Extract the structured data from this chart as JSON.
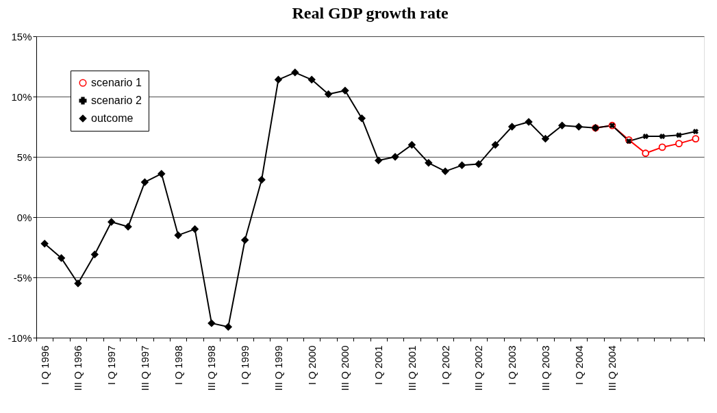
{
  "chart_data": {
    "type": "line",
    "title": "Real GDP growth rate",
    "categories": [
      "I Q 1996",
      null,
      "III Q 1996",
      null,
      "I Q 1997",
      null,
      "III Q 1997",
      null,
      "I Q 1998",
      null,
      "III Q 1998",
      null,
      "I Q 1999",
      null,
      "III Q 1999",
      null,
      "I Q 2000",
      null,
      "III Q 2000",
      null,
      "I Q 2001",
      null,
      "III Q 2001",
      null,
      "I Q 2002",
      null,
      "III Q 2002",
      null,
      "I Q 2003",
      null,
      "III Q 2003",
      null,
      "I Q 2004",
      null,
      "III Q 2004",
      null,
      null,
      null,
      null,
      null
    ],
    "series": [
      {
        "name": "scenario 1",
        "color": "#ff0000",
        "marker": "circle",
        "values": [
          null,
          null,
          null,
          null,
          null,
          null,
          null,
          null,
          null,
          null,
          null,
          null,
          null,
          null,
          null,
          null,
          null,
          null,
          null,
          null,
          null,
          null,
          null,
          null,
          null,
          null,
          null,
          null,
          null,
          null,
          null,
          null,
          null,
          7.4,
          7.6,
          6.4,
          5.3,
          5.8,
          6.1,
          6.5
        ]
      },
      {
        "name": "scenario 2",
        "color": "#000000",
        "marker": "cross",
        "values": [
          null,
          null,
          null,
          null,
          null,
          null,
          null,
          null,
          null,
          null,
          null,
          null,
          null,
          null,
          null,
          null,
          null,
          null,
          null,
          null,
          null,
          null,
          null,
          null,
          null,
          null,
          null,
          null,
          null,
          null,
          null,
          null,
          null,
          7.4,
          7.6,
          6.3,
          6.7,
          6.7,
          6.8,
          7.1
        ]
      },
      {
        "name": "outcome",
        "color": "#000000",
        "marker": "diamond",
        "values": [
          -2.2,
          -3.4,
          -5.5,
          -3.1,
          -0.4,
          -0.8,
          2.9,
          3.6,
          -1.5,
          -1.0,
          -8.8,
          -9.1,
          -1.9,
          3.1,
          11.4,
          12.0,
          11.4,
          10.2,
          10.5,
          8.2,
          4.7,
          5.0,
          6.0,
          4.5,
          3.8,
          4.3,
          4.4,
          6.0,
          7.5,
          7.9,
          6.5,
          7.6,
          7.5,
          7.4,
          null,
          null,
          null,
          null,
          null,
          null
        ]
      }
    ],
    "ylim": [
      -10,
      15
    ],
    "yticks": [
      {
        "value": -10,
        "label": "-10%"
      },
      {
        "value": -5,
        "label": "-5%"
      },
      {
        "value": 0,
        "label": "0%"
      },
      {
        "value": 5,
        "label": "5%"
      },
      {
        "value": 10,
        "label": "10%"
      },
      {
        "value": 15,
        "label": "15%"
      }
    ],
    "grid": "y",
    "legend": "top left",
    "line_style": "solid"
  }
}
